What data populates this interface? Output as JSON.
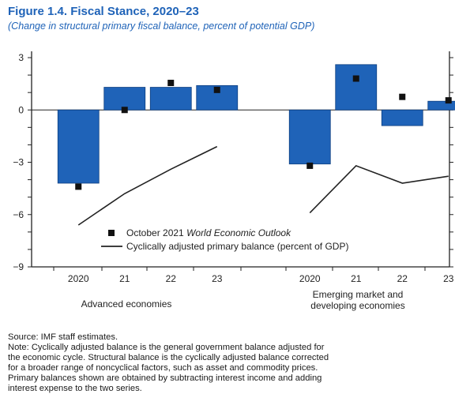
{
  "figure": {
    "title": "Figure 1.4.  Fiscal Stance, 2020–23",
    "subtitle": "(Change in structural primary fiscal balance, percent of potential GDP)"
  },
  "chart_data": {
    "type": "bar",
    "ylim": [
      -9,
      4
    ],
    "y_ticks": [
      3,
      0,
      -3,
      -6,
      -9
    ],
    "y_tick_labels": [
      "3",
      "0",
      "−3",
      "−6",
      "−9"
    ],
    "groups": [
      {
        "label": "Advanced economies",
        "categories": [
          "2020",
          "21",
          "22",
          "23"
        ],
        "bars": [
          -4.2,
          1.3,
          1.3,
          1.4
        ],
        "markers": [
          -4.4,
          0.0,
          1.55,
          1.15
        ],
        "line": [
          -6.6,
          -4.8,
          -3.4,
          -2.1
        ]
      },
      {
        "label": "Emerging market and developing economies",
        "label_lines": [
          "Emerging market and",
          "developing economies"
        ],
        "categories": [
          "2020",
          "21",
          "22",
          "23"
        ],
        "bars": [
          -3.1,
          2.6,
          -0.9,
          0.5
        ],
        "markers": [
          -3.2,
          1.8,
          0.75,
          0.55
        ],
        "line": [
          -5.9,
          -3.2,
          -4.2,
          -3.8
        ]
      }
    ],
    "series": [
      {
        "name": "October 2021 World Economic Outlook",
        "name_prefix": "October 2021 ",
        "name_italic": "World Economic Outlook",
        "kind": "marker"
      },
      {
        "name": "Cyclically adjusted primary balance (percent of GDP)",
        "kind": "line"
      }
    ],
    "colors": {
      "bar": "#1f63b8",
      "bar_edge": "#0d3f80",
      "marker": "#111111",
      "line": "#222222",
      "title": "#1f63b8"
    }
  },
  "notes": {
    "source": "Source: IMF staff estimates.",
    "note_lines": [
      "Note: Cyclically adjusted balance is the general government balance adjusted for",
      "the economic cycle. Structural balance is the cyclically adjusted balance corrected",
      "for a broader range of noncyclical factors, such as asset and commodity prices.",
      "Primary balances shown are obtained by subtracting interest income and adding",
      "interest expense to the two series."
    ]
  }
}
